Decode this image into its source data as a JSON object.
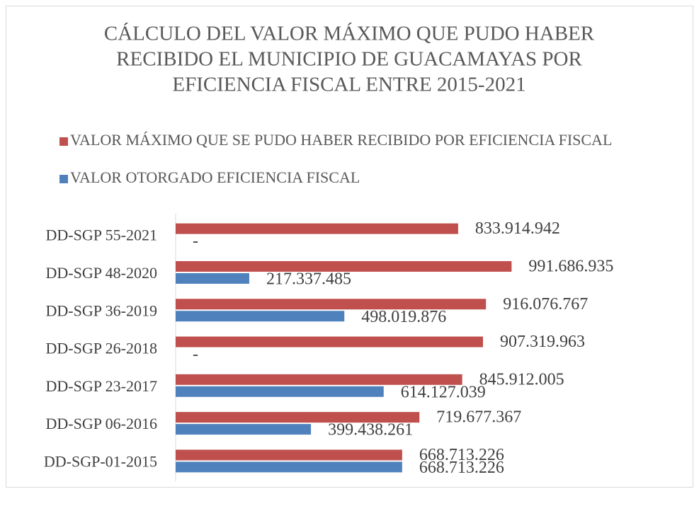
{
  "chart_data": {
    "type": "hbar",
    "title": [
      "CÁLCULO DEL VALOR MÁXIMO QUE PUDO HABER",
      "RECIBIDO EL MUNICIPIO DE GUACAMAYAS POR",
      "EFICIENCIA FISCAL ENTRE 2015-2021"
    ],
    "categories": [
      "DD-SGP 55-2021",
      "DD-SGP 48-2020",
      "DD-SGP 36-2019",
      "DD-SGP 26-2018",
      "DD-SGP 23-2017",
      "DD-SGP 06-2016",
      "DD-SGP-01-2015"
    ],
    "series": [
      {
        "name": "VALOR MÁXIMO QUE SE PUDO HABER RECIBIDO POR EFICIENCIA FISCAL",
        "color": "#c0504d",
        "values": [
          833914942,
          991686935,
          916076767,
          907319963,
          845912005,
          719677367,
          668713226
        ],
        "value_labels": [
          "833.914.942",
          "991.686.935",
          "916.076.767",
          "907.319.963",
          "845.912.005",
          "719.677.367",
          "668.713.226"
        ]
      },
      {
        "name": "VALOR OTORGADO EFICIENCIA FISCAL",
        "color": "#4f81bd",
        "values": [
          0,
          217337485,
          498019876,
          0,
          614127039,
          399438261,
          668713226
        ],
        "value_labels": [
          "-",
          "217.337.485",
          "498.019.876",
          "-",
          "614.127.039",
          "399.438.261",
          "668.713.226"
        ]
      }
    ],
    "xlim": [
      0,
      1200000000
    ]
  }
}
